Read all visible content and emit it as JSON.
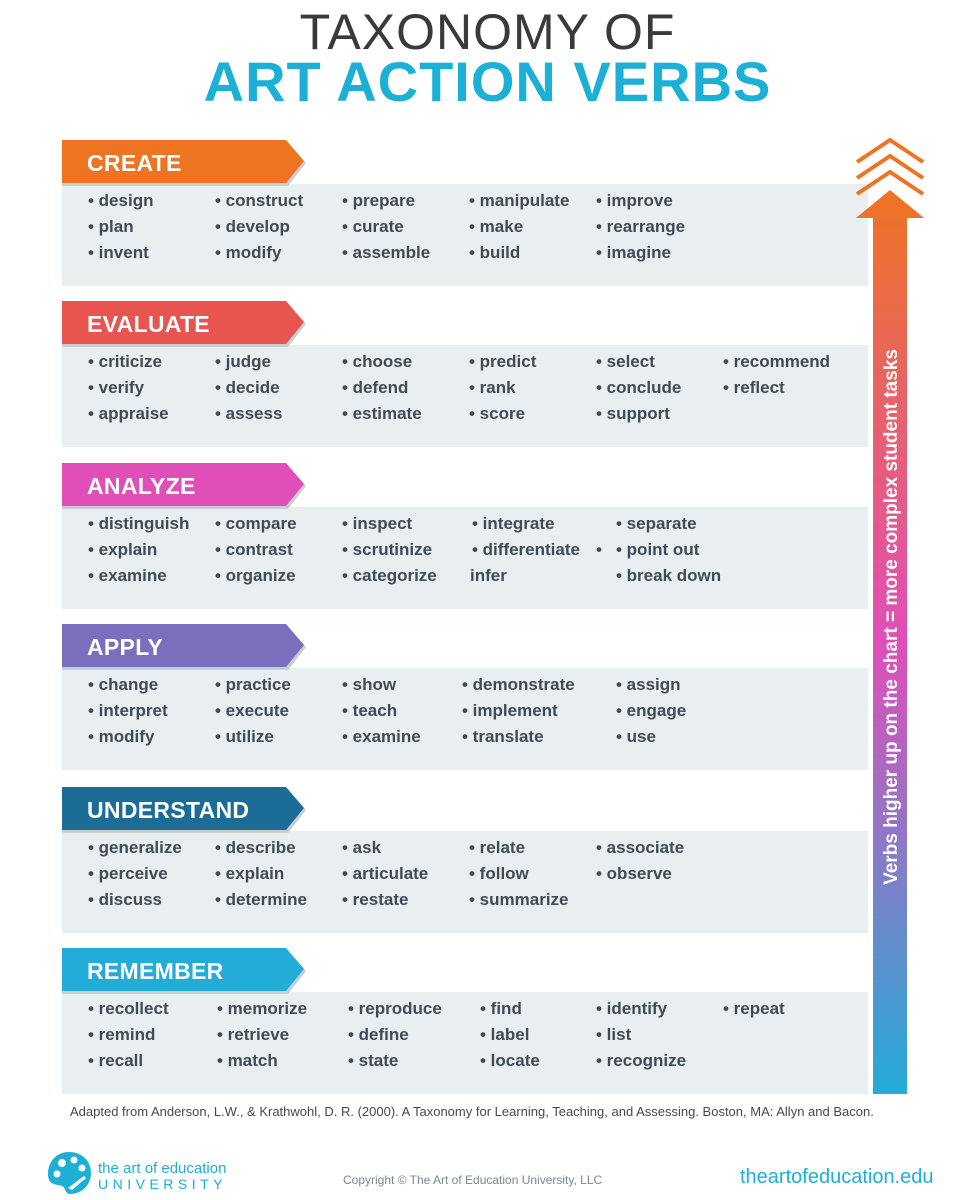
{
  "title": {
    "line1": "TAXONOMY OF",
    "line2": "ART ACTION VERBS"
  },
  "sections": [
    {
      "label": "CREATE",
      "color": "#ee7422",
      "verbs": [
        "• design",
        "• plan",
        "• invent",
        "• construct",
        "• develop",
        "• modify",
        "• prepare",
        "• curate",
        "• assemble",
        "• manipulate",
        "• make",
        "• build",
        "• improve",
        "• rearrange",
        "• imagine"
      ]
    },
    {
      "label": "EVALUATE",
      "color": "#e85450",
      "verbs": [
        "• criticize",
        "• verify",
        "• appraise",
        "• judge",
        "• decide",
        "• assess",
        "• choose",
        "• defend",
        "• estimate",
        "• predict",
        "• rank",
        "• score",
        "• select",
        "• conclude",
        "• support",
        "• recommend",
        "• reflect"
      ]
    },
    {
      "label": "ANALYZE",
      "color": "#e04fb7",
      "verbs": [
        "• distinguish",
        "• explain",
        "• examine",
        "• compare",
        "• contrast",
        "• organize",
        "• inspect",
        "• scrutinize",
        "• categorize",
        "• integrate",
        "• differentiate",
        "infer",
        "•",
        "• separate",
        "• point out",
        "• break down"
      ]
    },
    {
      "label": "APPLY",
      "color": "#7b6fbd",
      "verbs": [
        "• change",
        "• interpret",
        "• modify",
        "• practice",
        "• execute",
        "• utilize",
        "• show",
        "• teach",
        "• examine",
        "• demonstrate",
        "• implement",
        "• translate",
        "• assign",
        "• engage",
        "• use"
      ]
    },
    {
      "label": "UNDERSTAND",
      "color": "#1b6d97",
      "verbs": [
        "• generalize",
        "• perceive",
        "• discuss",
        "• describe",
        "• explain",
        "• determine",
        "• ask",
        "• articulate",
        "• restate",
        "• relate",
        "• follow",
        "• summarize",
        "• associate",
        "• observe"
      ]
    },
    {
      "label": "REMEMBER",
      "color": "#23acd8",
      "verbs": [
        "• recollect",
        "• remind",
        "• recall",
        "• memorize",
        "• retrieve",
        "• match",
        "• reproduce",
        "• define",
        "• state",
        "• find",
        "• label",
        "• locate",
        "• identify",
        "• list",
        "• recognize",
        "• repeat"
      ]
    }
  ],
  "arrow": {
    "text": "Verbs higher up on the chart  =  more complex student tasks",
    "top_color": "#ee7422",
    "mid_color": "#e04fb7",
    "bottom_color": "#23acd8"
  },
  "citation": "Adapted from Anderson, L.W., & Krathwohl, D. R. (2000). A Taxonomy for Learning, Teaching, and Assessing. Boston, MA: Allyn and Bacon.",
  "footer": {
    "logo_line1": "the art of education",
    "logo_line2": "UNIVERSITY",
    "copyright": "Copyright © The Art of Education University, LLC",
    "website": "theartofeducation.edu"
  }
}
